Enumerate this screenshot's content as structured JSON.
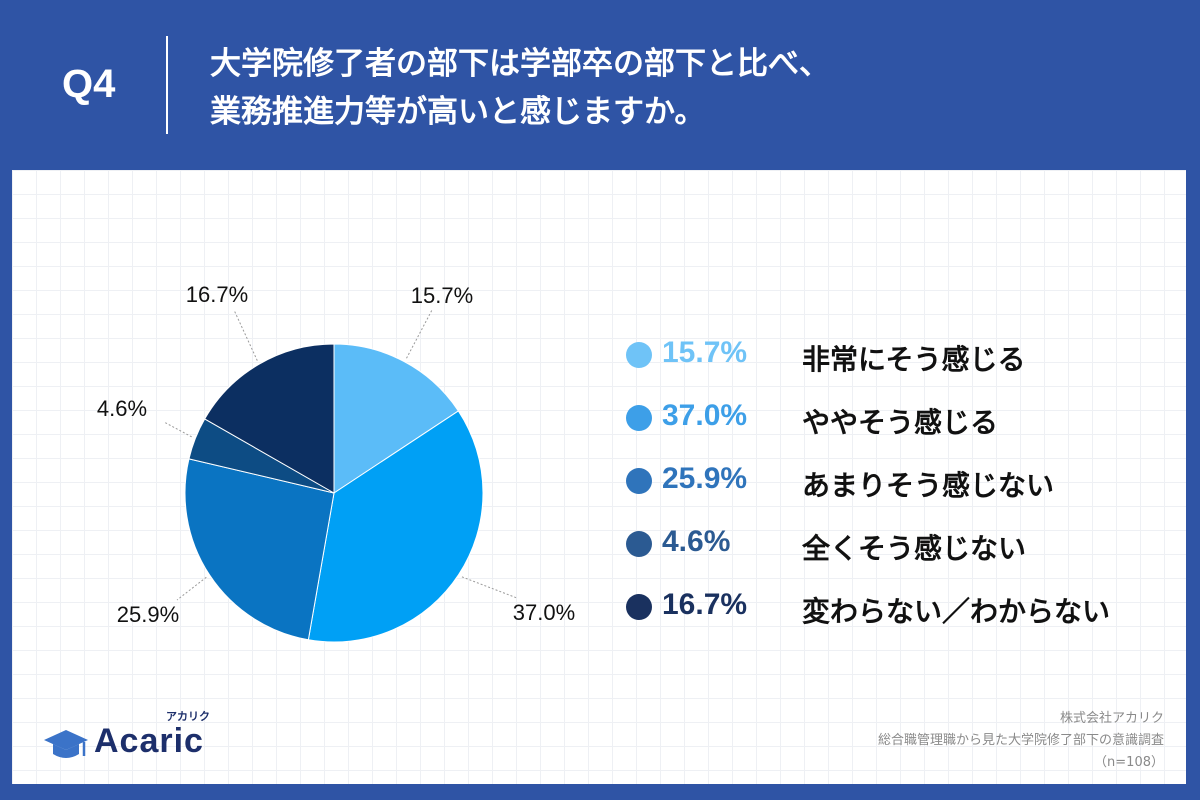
{
  "header": {
    "question_label": "Q4",
    "title_line1": "大学院修了者の部下は学部卒の部下と比べ、",
    "title_line2": "業務推進力等が高いと感じますか。"
  },
  "chart_data": {
    "type": "pie",
    "title": "",
    "slices": [
      {
        "label": "非常にそう感じる",
        "value": 15.7,
        "display": "15.7%",
        "color": "#5bbcf8"
      },
      {
        "label": "ややそう感じる",
        "value": 37.0,
        "display": "37.0%",
        "color": "#00a0f5"
      },
      {
        "label": "あまりそう感じない",
        "value": 25.9,
        "display": "25.9%",
        "color": "#0a74c2"
      },
      {
        "label": "全くそう感じない",
        "value": 4.6,
        "display": "4.6%",
        "color": "#0d4c84"
      },
      {
        "label": "変わらない／わからない",
        "value": 16.7,
        "display": "16.7%",
        "color": "#0c2f61"
      }
    ],
    "legend_position": "right"
  },
  "legend_colors": {
    "非常にそう感じる": "#6fc3f7",
    "ややそう感じる": "#3d9fe8",
    "あまりそう感じない": "#2f74bb",
    "全くそう感じない": "#2b5a92",
    "変わらない／わからない": "#1a315f"
  },
  "branding": {
    "logo_text": "Acaric",
    "logo_kana": "アカリク",
    "logo_icon": "graduation-cap-icon"
  },
  "footer": {
    "company": "株式会社アカリク",
    "survey": "総合職管理職から見た大学院修了部下の意識調査",
    "sample": "（n=108）"
  }
}
